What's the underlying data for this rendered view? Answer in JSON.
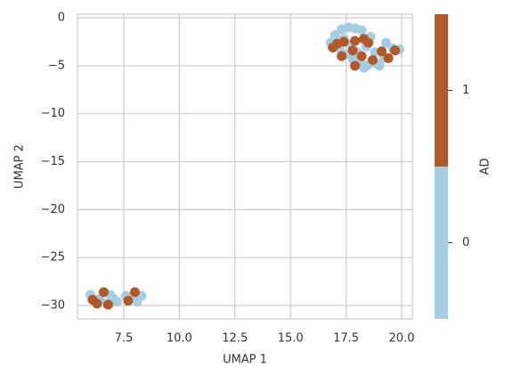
{
  "chart_data": {
    "type": "scatter",
    "xlabel": "UMAP 1",
    "ylabel": "UMAP 2",
    "xlim": [
      5.42,
      20.48
    ],
    "ylim": [
      -31.39,
      0.37
    ],
    "xticks": [
      7.5,
      {
        "value": 10,
        "label": "10.0"
      },
      12.5,
      {
        "value": 15,
        "label": "15.0"
      },
      17.5,
      {
        "value": 20,
        "label": "20.0"
      }
    ],
    "yticks": [
      0,
      {
        "value": -5,
        "label": "−5"
      },
      {
        "value": -10,
        "label": "−10"
      },
      {
        "value": -15,
        "label": "−15"
      },
      {
        "value": -20,
        "label": "−20"
      },
      {
        "value": -25,
        "label": "−25"
      },
      {
        "value": -30,
        "label": "−30"
      }
    ],
    "grid": true,
    "x": [
      17.3,
      17.6,
      17.9,
      18.2,
      17.0,
      16.8,
      17.2,
      17.5,
      17.8,
      18.1,
      18.5,
      18.9,
      19.2,
      19.6,
      19.9,
      19.3,
      18.6,
      18.4,
      17.7,
      18.0,
      17.4,
      18.8,
      19.0,
      18.3,
      17.1,
      17.4,
      17.9,
      18.3,
      18.5,
      17.3,
      17.8,
      17.9,
      18.2,
      18.7,
      19.1,
      19.4,
      19.7,
      16.9,
      6.0,
      6.4,
      6.9,
      7.2,
      7.0,
      7.6,
      8.0,
      8.3,
      8.1,
      6.7,
      6.1,
      6.3,
      6.6,
      6.8,
      7.7,
      8.0
    ],
    "y": [
      -1.2,
      -1.0,
      -1.1,
      -1.3,
      -1.8,
      -2.6,
      -3.2,
      -3.8,
      -4.3,
      -4.6,
      -4.9,
      -4.8,
      -4.2,
      -3.2,
      -3.3,
      -2.6,
      -2.0,
      -3.0,
      -2.8,
      -3.6,
      -2.2,
      -3.6,
      -5.0,
      -5.2,
      -2.7,
      -2.5,
      -2.4,
      -2.2,
      -2.6,
      -4.0,
      -3.4,
      -5.0,
      -4.0,
      -4.4,
      -3.5,
      -4.2,
      -3.4,
      -3.1,
      -28.9,
      -29.3,
      -28.9,
      -29.6,
      -29.2,
      -29.0,
      -29.3,
      -29.0,
      -29.6,
      -29.8,
      -29.4,
      -29.8,
      -28.6,
      -29.9,
      -29.5,
      -28.6
    ],
    "ad": [
      0,
      0,
      0,
      0,
      0,
      0,
      0,
      0,
      0,
      0,
      0,
      0,
      0,
      0,
      0,
      0,
      0,
      0,
      0,
      0,
      0,
      0,
      0,
      0,
      1,
      1,
      1,
      1,
      1,
      1,
      1,
      1,
      1,
      1,
      1,
      1,
      1,
      1,
      0,
      0,
      0,
      0,
      0,
      0,
      0,
      0,
      0,
      0,
      1,
      1,
      1,
      1,
      1,
      1
    ],
    "colorbar": {
      "label": "AD",
      "lim": [
        -0.5,
        1.5
      ],
      "ticks": [
        0,
        1
      ],
      "colors": [
        "#a6cee3",
        "#b15928"
      ]
    }
  }
}
